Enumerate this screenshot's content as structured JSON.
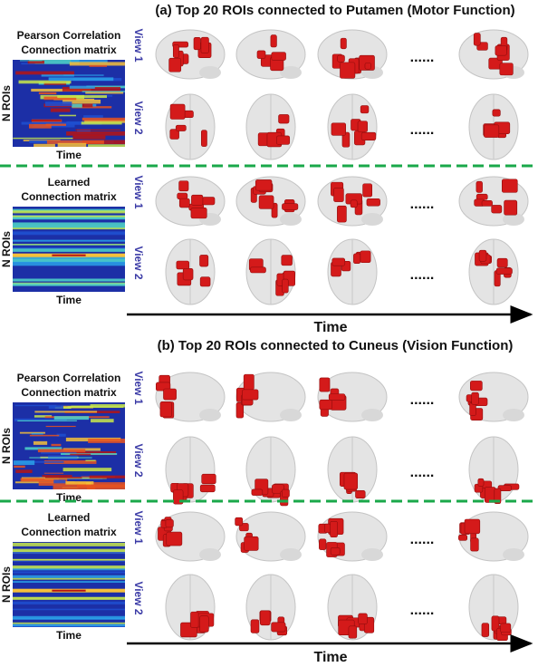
{
  "panels": [
    {
      "title": "(a) Top 20 ROIs connected to Putamen (Motor Function)",
      "blocks": [
        {
          "matrix_title": [
            "Pearson Correlation",
            "Connection matrix"
          ],
          "y_label": "N ROIs",
          "x_label": "Time",
          "rows": [
            {
              "label": "View 1",
              "ellipsis": "......"
            },
            {
              "label": "View 2",
              "ellipsis": "......"
            }
          ]
        },
        {
          "matrix_title": [
            "Learned",
            "Connection matrix"
          ],
          "y_label": "N ROIs",
          "x_label": "Time",
          "rows": [
            {
              "label": "View 1",
              "ellipsis": "......"
            },
            {
              "label": "View 2",
              "ellipsis": "......"
            }
          ]
        }
      ],
      "axis_label": "Time"
    },
    {
      "title": "(b) Top 20 ROIs connected to Cuneus (Vision Function)",
      "blocks": [
        {
          "matrix_title": [
            "Pearson Correlation",
            "Connection matrix"
          ],
          "y_label": "N ROIs",
          "x_label": "Time",
          "rows": [
            {
              "label": "View 1",
              "ellipsis": "......"
            },
            {
              "label": "View 2",
              "ellipsis": "......"
            }
          ]
        },
        {
          "matrix_title": [
            "Learned",
            "Connection matrix"
          ],
          "y_label": "N ROIs",
          "x_label": "Time",
          "rows": [
            {
              "label": "View 1",
              "ellipsis": "......"
            },
            {
              "label": "View 2",
              "ellipsis": "......"
            }
          ]
        }
      ],
      "axis_label": "Time"
    }
  ]
}
